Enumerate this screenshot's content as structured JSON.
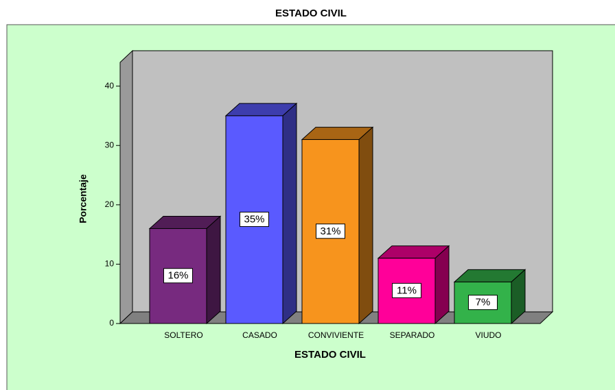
{
  "chart_data": {
    "type": "bar3d",
    "title": "ESTADO CIVIL",
    "x_label": "ESTADO CIVIL",
    "y_label": "Porcentaje",
    "categories": [
      "SOLTERO",
      "CASADO",
      "CONVIVIENTE",
      "SEPARADO",
      "VIUDO"
    ],
    "values": [
      16,
      35,
      31,
      11,
      7
    ],
    "value_labels": [
      "16%",
      "35%",
      "31%",
      "11%",
      "7%"
    ],
    "colors": [
      "#772a7f",
      "#5a5aff",
      "#f7941d",
      "#ff0099",
      "#33b24a"
    ],
    "ylim": [
      0,
      44
    ],
    "yticks": [
      0,
      10,
      20,
      30,
      40
    ]
  }
}
